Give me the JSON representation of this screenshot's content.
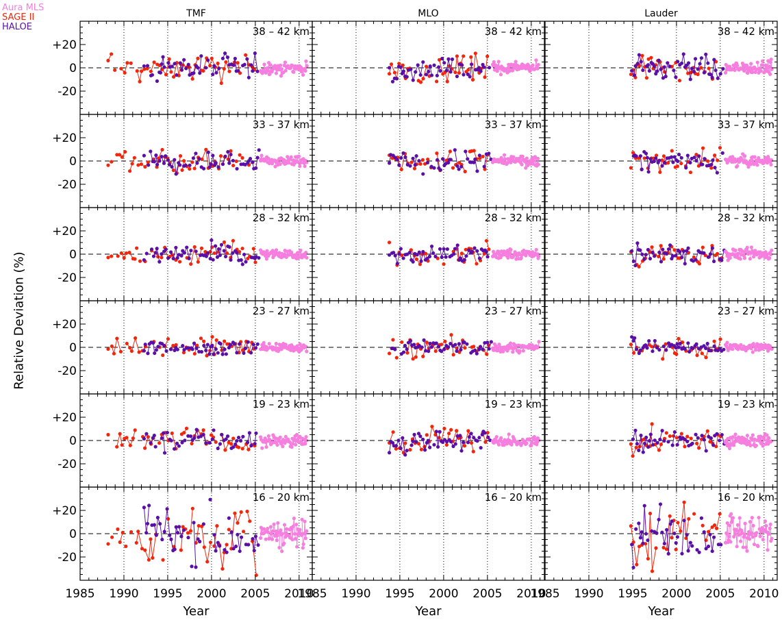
{
  "legend": {
    "mls": "Aura MLS",
    "sage": "SAGE II",
    "haloe": "HALOE"
  },
  "ylabel": "Relative Deviation (%)",
  "xlabel": "Year",
  "colors": {
    "mls": "#f57ede",
    "sage": "#f2260b",
    "haloe": "#5a0fa6"
  },
  "chart_data": {
    "type": "scatter",
    "layout": "6 rows x 3 columns small multiples",
    "columns": [
      "TMF",
      "MLO",
      "Lauder"
    ],
    "rows": [
      "38 – 42 km",
      "33 – 37 km",
      "28 – 32 km",
      "23 – 27 km",
      "19 – 23 km",
      "16 – 20 km"
    ],
    "xlabel": "Year",
    "ylabel": "Relative Deviation (%)",
    "xlim": [
      1985,
      2011.5
    ],
    "ylim": [
      -40,
      40
    ],
    "xticks": [
      "1985",
      "1990",
      "1995",
      "2000",
      "2005",
      "2010"
    ],
    "yticks": [
      "+20",
      "0",
      "-20"
    ],
    "series_names": [
      "Aura MLS",
      "SAGE II",
      "HALOE"
    ],
    "series_time_ranges": {
      "SAGE II": {
        "TMF": [
          1988.2,
          2005.2
        ],
        "MLO": [
          1993.8,
          2005.2
        ],
        "Lauder": [
          1994.8,
          2005.2
        ]
      },
      "HALOE": {
        "TMF": [
          1992.3,
          2005.5
        ],
        "MLO": [
          1993.8,
          2005.5
        ],
        "Lauder": [
          1994.9,
          2005.5
        ]
      },
      "Aura MLS": {
        "TMF": [
          2005.6,
          2010.9
        ],
        "MLO": [
          2005.6,
          2010.9
        ],
        "Lauder": [
          2005.6,
          2010.9
        ]
      }
    },
    "typical_scatter_percent": {
      "38 – 42 km": 6,
      "33 – 37 km": 5,
      "28 – 32 km": 5,
      "23 – 27 km": 4,
      "19 – 23 km": 6,
      "16 – 20 km": 15
    },
    "mlo_16_20km": "no data"
  }
}
